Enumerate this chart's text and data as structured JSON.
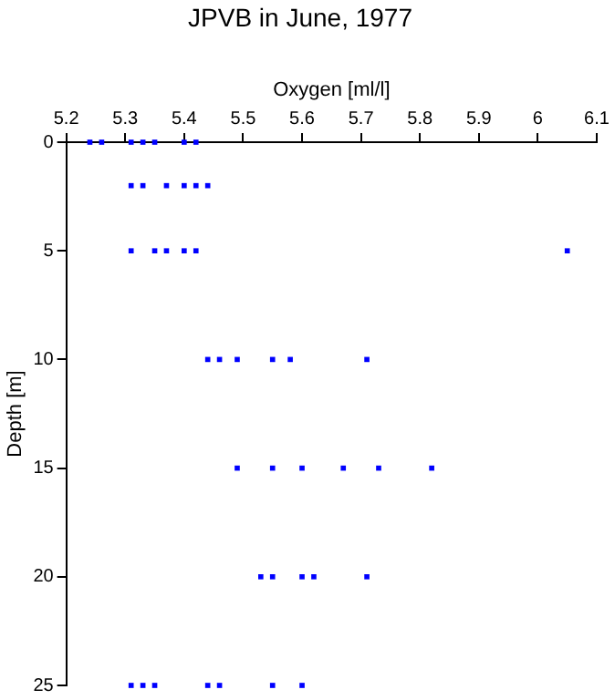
{
  "chart_data": {
    "type": "scatter",
    "title": "JPVB in June, 1977",
    "xlabel": "Oxygen [ml/l]",
    "ylabel": "Depth [m]",
    "series": [
      {
        "color": "#0000ff",
        "x": [
          5.24,
          5.26,
          5.31,
          5.33,
          5.35,
          5.4,
          5.42,
          5.31,
          5.33,
          5.37,
          5.4,
          5.42,
          5.44,
          5.31,
          5.35,
          5.37,
          5.4,
          5.42,
          6.05,
          5.44,
          5.46,
          5.49,
          5.55,
          5.58,
          5.71,
          5.49,
          5.55,
          5.6,
          5.67,
          5.73,
          5.82,
          5.53,
          5.55,
          5.6,
          5.62,
          5.71,
          5.31,
          5.33,
          5.35,
          5.44,
          5.46,
          5.55,
          5.6
        ],
        "values": [
          0,
          0,
          0,
          0,
          0,
          0,
          0,
          2,
          2,
          2,
          2,
          2,
          2,
          5,
          5,
          5,
          5,
          5,
          5,
          10,
          10,
          10,
          10,
          10,
          10,
          15,
          15,
          15,
          15,
          15,
          15,
          20,
          20,
          20,
          20,
          20,
          25,
          25,
          25,
          25,
          25,
          25,
          25
        ]
      }
    ],
    "xlim": [
      5.2,
      6.1
    ],
    "xticks": [
      5.2,
      5.3,
      5.4,
      5.5,
      5.6,
      5.7,
      5.8,
      5.9,
      6,
      6.1
    ],
    "ylim": [
      25,
      0
    ],
    "yticks": [
      0,
      5,
      10,
      15,
      20,
      25
    ],
    "grid": false,
    "legend": false,
    "marker": "square"
  }
}
